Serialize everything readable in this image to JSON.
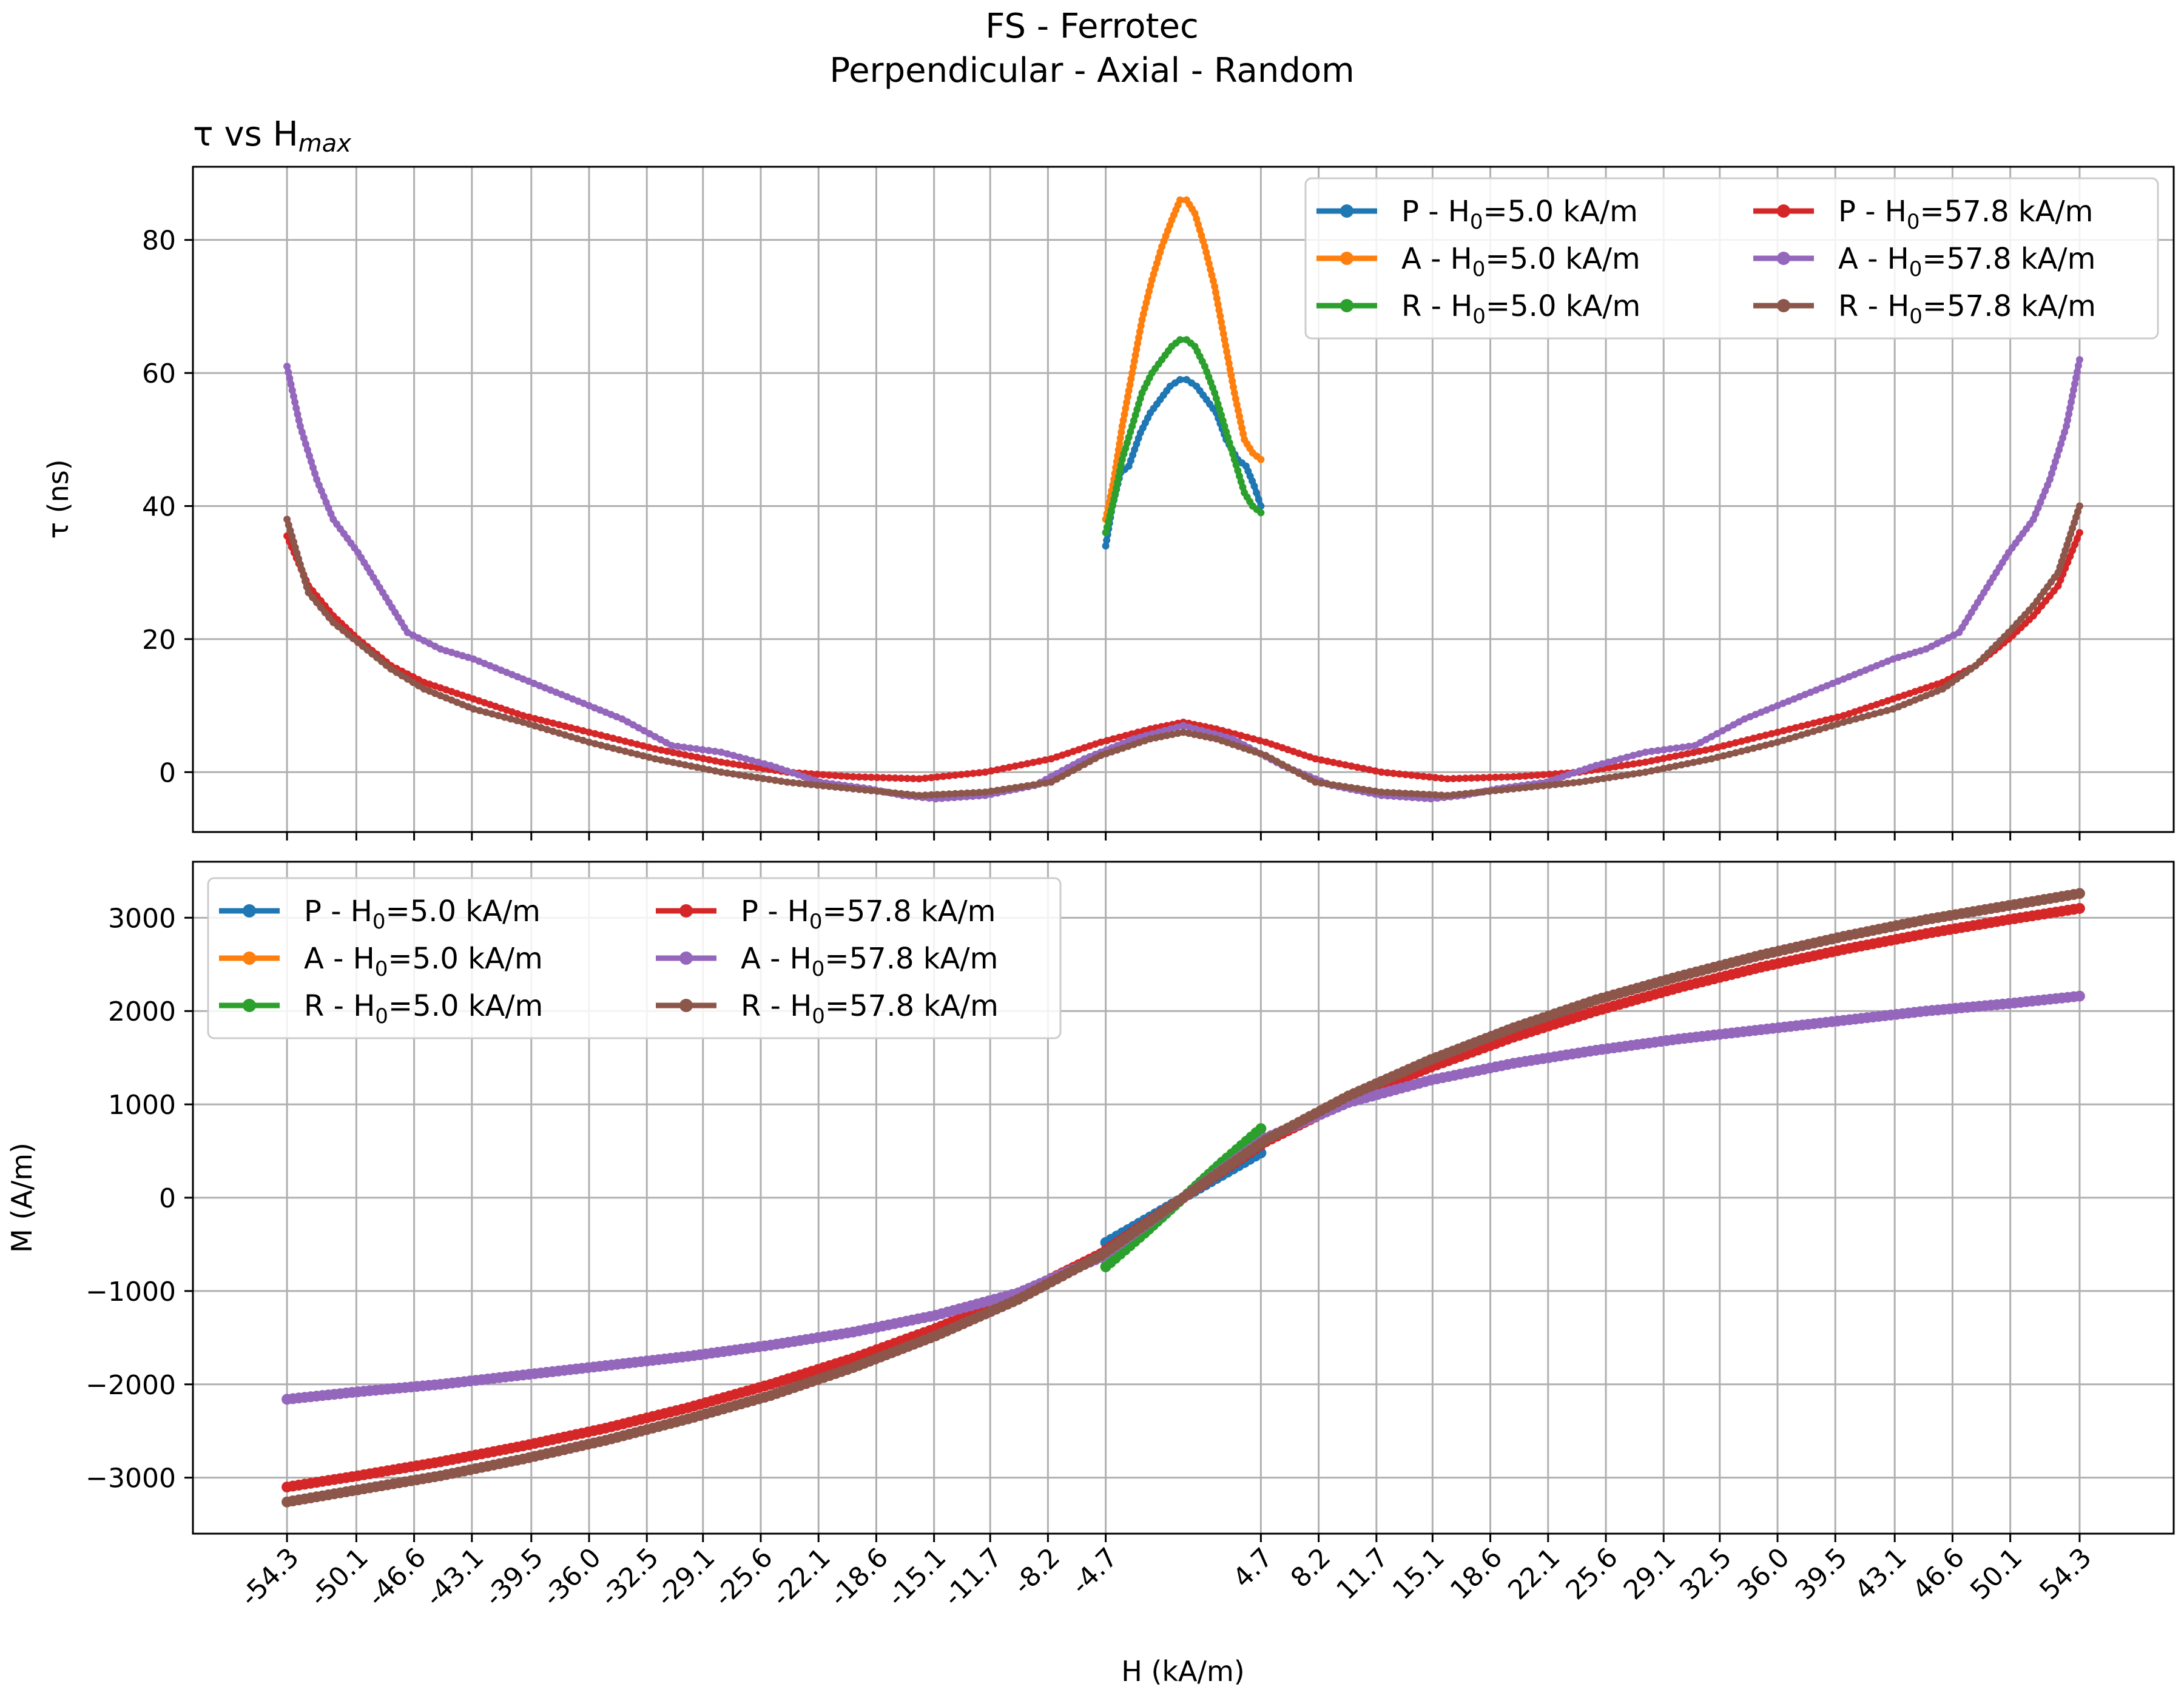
{
  "figure": {
    "title_line1": "FS - Ferrotec",
    "title_line2": "Perpendicular - Axial - Random"
  },
  "colors": {
    "P": "#1f77b4",
    "A": "#ff7f0e",
    "R": "#2ca02c",
    "P57": "#d62728",
    "A57": "#9467bd",
    "R57": "#8c564b",
    "grid": "#b0b0b0"
  },
  "legend_top": {
    "entries": [
      {
        "prefix": "P - H",
        "sub": "0",
        "suffix": "=5.0 kA/m"
      },
      {
        "prefix": "A - H",
        "sub": "0",
        "suffix": "=5.0 kA/m"
      },
      {
        "prefix": "R - H",
        "sub": "0",
        "suffix": "=5.0 kA/m"
      },
      {
        "prefix": "P - H",
        "sub": "0",
        "suffix": "=57.8 kA/m"
      },
      {
        "prefix": "A - H",
        "sub": "0",
        "suffix": "=57.8 kA/m"
      },
      {
        "prefix": "R - H",
        "sub": "0",
        "suffix": "=57.8 kA/m"
      }
    ]
  },
  "legend_bottom": {
    "entries": [
      {
        "prefix": "P - H",
        "sub": "0",
        "suffix": "=5.0 kA/m"
      },
      {
        "prefix": "A - H",
        "sub": "0",
        "suffix": "=5.0 kA/m"
      },
      {
        "prefix": "R - H",
        "sub": "0",
        "suffix": "=5.0 kA/m"
      },
      {
        "prefix": "P - H",
        "sub": "0",
        "suffix": "=57.8 kA/m"
      },
      {
        "prefix": "A - H",
        "sub": "0",
        "suffix": "=57.8 kA/m"
      },
      {
        "prefix": "R - H",
        "sub": "0",
        "suffix": "=57.8 kA/m"
      }
    ]
  },
  "chart_data": [
    {
      "type": "line",
      "title_main": "τ vs H",
      "title_sub": "max",
      "xlabel": "",
      "ylabel": "τ (ns)",
      "xlim": [
        -60.0,
        60.0
      ],
      "ylim": [
        -9,
        91
      ],
      "yticks": [
        0,
        20,
        40,
        60,
        80
      ],
      "ytick_labels": [
        "0",
        "20",
        "40",
        "60",
        "80"
      ],
      "xticks": [
        -54.3,
        -50.1,
        -46.6,
        -43.1,
        -39.5,
        -36.0,
        -32.5,
        -29.1,
        -25.6,
        -22.1,
        -18.6,
        -15.1,
        -11.7,
        -8.2,
        -4.7,
        4.7,
        8.2,
        11.7,
        15.1,
        18.6,
        22.1,
        25.6,
        29.1,
        32.5,
        36.0,
        39.5,
        43.1,
        46.6,
        50.1,
        54.3
      ],
      "grid": true,
      "legend_position": "top-right",
      "series": [
        {
          "name": "P - H0=5.0 kA/m",
          "color_key": "P",
          "x": [
            -4.7,
            -4.3,
            -3.8,
            -3.3,
            -2.6,
            -2.0,
            -1.4,
            -0.8,
            -0.2,
            0.2,
            0.8,
            1.4,
            2.0,
            2.6,
            3.3,
            3.8,
            4.3,
            4.7
          ],
          "y": [
            34,
            40,
            45,
            46,
            51,
            54,
            56,
            58,
            59,
            59,
            58,
            56,
            54,
            50,
            47,
            46,
            43,
            40
          ]
        },
        {
          "name": "A - H0=5.0 kA/m",
          "color_key": "A",
          "x": [
            -4.7,
            -4.2,
            -3.7,
            -3.1,
            -2.5,
            -1.9,
            -1.3,
            -0.7,
            -0.2,
            0.2,
            0.7,
            1.3,
            1.9,
            2.5,
            3.1,
            3.7,
            4.2,
            4.7
          ],
          "y": [
            38,
            44,
            52,
            60,
            68,
            74,
            79,
            83,
            86,
            86,
            84,
            79,
            73,
            65,
            57,
            50,
            48,
            47
          ]
        },
        {
          "name": "R - H0=5.0 kA/m",
          "color_key": "R",
          "x": [
            -4.7,
            -4.2,
            -3.7,
            -3.1,
            -2.5,
            -1.9,
            -1.3,
            -0.7,
            -0.2,
            0.2,
            0.7,
            1.3,
            1.9,
            2.5,
            3.1,
            3.7,
            4.2,
            4.7
          ],
          "y": [
            36,
            41,
            47,
            52,
            57,
            60,
            62,
            64,
            65,
            65,
            64,
            61,
            57,
            52,
            47,
            42,
            40,
            39
          ]
        },
        {
          "name": "P - H0=57.8 kA/m",
          "color_key": "P57",
          "x": [
            -54.3,
            -53.0,
            -51.5,
            -50.0,
            -48.0,
            -46.0,
            -43.0,
            -40.0,
            -36.0,
            -32.0,
            -28.0,
            -24.0,
            -20.0,
            -16.0,
            -12.0,
            -8.0,
            -5.0,
            -2.0,
            0.0,
            2.0,
            5.0,
            8.0,
            12.0,
            16.0,
            20.0,
            24.0,
            28.0,
            32.0,
            36.0,
            40.0,
            43.0,
            46.0,
            48.0,
            50.0,
            51.5,
            53.0,
            54.3
          ],
          "y": [
            35.5,
            28,
            23.5,
            20,
            16,
            13.5,
            11,
            8.5,
            6,
            3.5,
            1.5,
            0.0,
            -0.7,
            -1.0,
            0.0,
            2.0,
            4.5,
            6.5,
            7.5,
            6.5,
            4.5,
            2.0,
            0.0,
            -1.0,
            -0.7,
            0.0,
            1.5,
            3.5,
            6,
            8.5,
            11,
            13.5,
            16,
            20,
            23.5,
            28,
            36
          ]
        },
        {
          "name": "A - H0=57.8 kA/m",
          "color_key": "A57",
          "x": [
            -54.3,
            -53.5,
            -52.5,
            -51.5,
            -50.0,
            -48.5,
            -47.0,
            -45.0,
            -43.0,
            -40.0,
            -37.0,
            -34.0,
            -31.0,
            -28.0,
            -25.0,
            -22.0,
            -19.0,
            -17.0,
            -15.0,
            -12.0,
            -9.0,
            -6.0,
            -3.0,
            0.0,
            3.0,
            6.0,
            9.0,
            12.0,
            15.0,
            17.0,
            19.0,
            22.0,
            25.0,
            28.0,
            31.0,
            34.0,
            37.0,
            40.0,
            43.0,
            45.0,
            47.0,
            48.5,
            50.0,
            51.5,
            52.5,
            53.5,
            54.3
          ],
          "y": [
            61,
            52,
            44,
            38,
            33,
            27,
            21,
            18.5,
            17,
            14,
            11,
            8,
            4,
            3,
            1,
            -1.5,
            -2.5,
            -3.5,
            -4,
            -3.5,
            -2,
            2,
            5,
            7,
            5,
            1,
            -2,
            -3.5,
            -4,
            -3.5,
            -2.5,
            -1.5,
            1,
            3,
            4,
            8,
            11,
            14,
            17,
            18.5,
            21,
            27,
            33,
            38,
            44,
            52,
            62
          ]
        },
        {
          "name": "R - H0=57.8 kA/m",
          "color_key": "R57",
          "x": [
            -54.3,
            -53.0,
            -51.5,
            -50.0,
            -48.0,
            -46.0,
            -43.0,
            -40.0,
            -36.0,
            -32.0,
            -28.0,
            -24.0,
            -20.0,
            -16.0,
            -12.0,
            -8.0,
            -5.0,
            -2.0,
            0.0,
            2.0,
            5.0,
            8.0,
            12.0,
            16.0,
            20.0,
            24.0,
            28.0,
            32.0,
            36.0,
            40.0,
            43.0,
            46.0,
            48.0,
            50.0,
            51.5,
            53.0,
            54.3
          ],
          "y": [
            38,
            27,
            22.5,
            19.5,
            15.5,
            12.5,
            9.5,
            7.5,
            4.5,
            2.0,
            0.0,
            -1.5,
            -2.5,
            -3.5,
            -3.0,
            -1.5,
            2.5,
            5.0,
            6.0,
            5.0,
            2.5,
            -1.5,
            -3.0,
            -3.5,
            -2.5,
            -1.5,
            0.0,
            2.0,
            4.5,
            7.5,
            9.5,
            12.5,
            16,
            21,
            25,
            30,
            40
          ]
        }
      ]
    },
    {
      "type": "line",
      "xlabel": "H (kA/m)",
      "ylabel": "M (A/m)",
      "xlim": [
        -60.0,
        60.0
      ],
      "ylim": [
        -3600,
        3600
      ],
      "yticks": [
        -3000,
        -2000,
        -1000,
        0,
        1000,
        2000,
        3000
      ],
      "ytick_labels": [
        "−3000",
        "−2000",
        "−1000",
        "0",
        "1000",
        "2000",
        "3000"
      ],
      "xticks": [
        -54.3,
        -50.1,
        -46.6,
        -43.1,
        -39.5,
        -36.0,
        -32.5,
        -29.1,
        -25.6,
        -22.1,
        -18.6,
        -15.1,
        -11.7,
        -8.2,
        -4.7,
        4.7,
        8.2,
        11.7,
        15.1,
        18.6,
        22.1,
        25.6,
        29.1,
        32.5,
        36.0,
        39.5,
        43.1,
        46.6,
        50.1,
        54.3
      ],
      "xtick_labels": [
        "-54.3",
        "-50.1",
        "-46.6",
        "-43.1",
        "-39.5",
        "-36.0",
        "-32.5",
        "-29.1",
        "-25.6",
        "-22.1",
        "-18.6",
        "-15.1",
        "-11.7",
        "-8.2",
        "-4.7",
        "4.7",
        "8.2",
        "11.7",
        "15.1",
        "18.6",
        "22.1",
        "25.6",
        "29.1",
        "32.5",
        "36.0",
        "39.5",
        "43.1",
        "46.6",
        "50.1",
        "54.3"
      ],
      "grid": true,
      "legend_position": "top-left",
      "series": [
        {
          "name": "P - H0=5.0 kA/m",
          "color_key": "P",
          "x": [
            -4.7,
            -2.35,
            0,
            2.35,
            4.7
          ],
          "y": [
            -480,
            -240,
            0,
            240,
            480
          ]
        },
        {
          "name": "A - H0=5.0 kA/m",
          "color_key": "A",
          "x": [
            -4.7,
            -2.35,
            0,
            2.35,
            4.7
          ],
          "y": [
            -620,
            -320,
            0,
            320,
            620
          ]
        },
        {
          "name": "R - H0=5.0 kA/m",
          "color_key": "R",
          "x": [
            -4.7,
            -2.35,
            0,
            2.35,
            4.7
          ],
          "y": [
            -740,
            -380,
            0,
            380,
            740
          ]
        },
        {
          "name": "P - H0=57.8 kA/m",
          "color_key": "P57",
          "x": [
            -54.3,
            -50.0,
            -45.0,
            -40.0,
            -35.0,
            -30.0,
            -25.0,
            -20.0,
            -15.0,
            -10.0,
            -5.0,
            0.0,
            5.0,
            10.0,
            15.0,
            20.0,
            25.0,
            30.0,
            35.0,
            40.0,
            45.0,
            50.0,
            54.3
          ],
          "y": [
            -3100,
            -2980,
            -2830,
            -2660,
            -2470,
            -2250,
            -2000,
            -1720,
            -1400,
            -1040,
            -600,
            0,
            600,
            1040,
            1400,
            1720,
            2000,
            2250,
            2470,
            2660,
            2830,
            2980,
            3100
          ]
        },
        {
          "name": "A - H0=57.8 kA/m",
          "color_key": "A57",
          "x": [
            -54.3,
            -50.0,
            -45.0,
            -40.0,
            -35.0,
            -30.0,
            -25.0,
            -20.0,
            -15.0,
            -10.0,
            -5.0,
            0.0,
            5.0,
            10.0,
            15.0,
            20.0,
            25.0,
            30.0,
            35.0,
            40.0,
            45.0,
            50.0,
            54.3
          ],
          "y": [
            -2160,
            -2080,
            -2000,
            -1900,
            -1800,
            -1700,
            -1580,
            -1440,
            -1260,
            -1020,
            -640,
            0,
            640,
            1020,
            1260,
            1440,
            1580,
            1700,
            1800,
            1900,
            2000,
            2080,
            2160
          ]
        },
        {
          "name": "R - H0=57.8 kA/m",
          "color_key": "R57",
          "x": [
            -54.3,
            -50.0,
            -45.0,
            -40.0,
            -35.0,
            -30.0,
            -25.0,
            -20.0,
            -15.0,
            -10.0,
            -5.0,
            0.0,
            5.0,
            10.0,
            15.0,
            20.0,
            25.0,
            30.0,
            35.0,
            40.0,
            45.0,
            50.0,
            54.3
          ],
          "y": [
            -3260,
            -3130,
            -2980,
            -2800,
            -2600,
            -2370,
            -2120,
            -1820,
            -1480,
            -1090,
            -620,
            0,
            620,
            1090,
            1480,
            1820,
            2120,
            2370,
            2600,
            2800,
            2980,
            3130,
            3260
          ]
        }
      ]
    }
  ]
}
